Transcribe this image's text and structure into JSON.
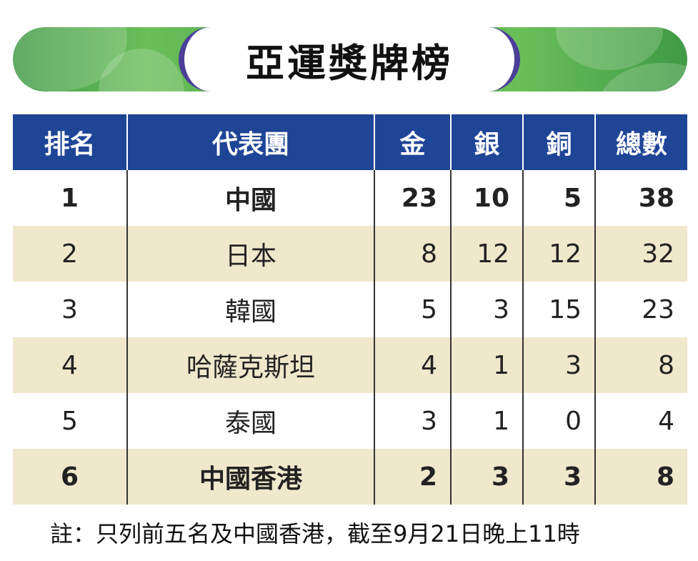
{
  "header": {
    "title": "亞運獎牌榜"
  },
  "table": {
    "columns": [
      "排名",
      "代表團",
      "金",
      "銀",
      "銅",
      "總數"
    ],
    "rows": [
      [
        "1",
        "中國",
        "23",
        "10",
        "5",
        "38"
      ],
      [
        "2",
        "日本",
        "8",
        "12",
        "12",
        "32"
      ],
      [
        "3",
        "韓國",
        "5",
        "3",
        "15",
        "23"
      ],
      [
        "4",
        "哈薩克斯坦",
        "4",
        "1",
        "3",
        "8"
      ],
      [
        "5",
        "泰國",
        "3",
        "1",
        "0",
        "4"
      ],
      [
        "6",
        "中國香港",
        "2",
        "3",
        "3",
        "8"
      ]
    ]
  },
  "footer": {
    "note": "註：只列前五名及中國香港，截至9月21日晚上11時"
  }
}
